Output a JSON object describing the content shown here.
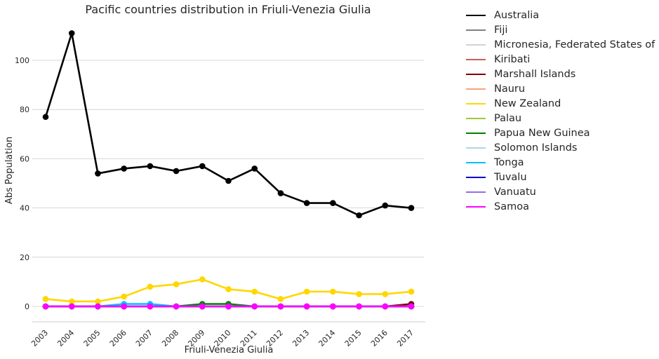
{
  "chart_data": {
    "type": "line",
    "title": "Pacific countries distribution in Friuli-Venezia Giulia",
    "xlabel": "Friuli-Venezia Giulia",
    "ylabel": "Abs Population",
    "categories": [
      "2003",
      "2004",
      "2005",
      "2006",
      "2007",
      "2008",
      "2009",
      "2010",
      "2011",
      "2012",
      "2013",
      "2014",
      "2015",
      "2016",
      "2017"
    ],
    "ylim": [
      -6.5,
      117
    ],
    "yticks": [
      "0",
      "20",
      "40",
      "60",
      "80",
      "100"
    ],
    "grid": "horizontal",
    "legend_position": "outside-right",
    "series": [
      {
        "name": "Australia",
        "color": "#000000",
        "marker": true,
        "values": [
          77,
          111,
          54,
          56,
          57,
          55,
          57,
          51,
          56,
          46,
          42,
          42,
          37,
          41,
          40
        ]
      },
      {
        "name": "Fiji",
        "color": "#808080",
        "marker": true,
        "values": [
          0,
          0,
          0,
          0,
          0,
          0,
          0,
          0,
          0,
          0,
          0,
          0,
          0,
          0,
          0
        ]
      },
      {
        "name": "Micronesia, Federated States of",
        "color": "#d3d3d3",
        "marker": true,
        "values": [
          0,
          0,
          0,
          0,
          0,
          0,
          0,
          0,
          0,
          0,
          0,
          0,
          0,
          0,
          0
        ]
      },
      {
        "name": "Kiribati",
        "color": "#cd5c5c",
        "marker": true,
        "values": [
          0,
          0,
          0,
          0,
          0,
          0,
          0,
          0,
          0,
          0,
          0,
          0,
          0,
          0,
          0
        ]
      },
      {
        "name": "Marshall Islands",
        "color": "#800000",
        "marker": true,
        "values": [
          0,
          0,
          0,
          0,
          0,
          0,
          0,
          0,
          0,
          0,
          0,
          0,
          0,
          0,
          1
        ]
      },
      {
        "name": "Nauru",
        "color": "#ffa07a",
        "marker": true,
        "values": [
          0,
          0,
          0,
          0,
          0,
          0,
          0,
          0,
          0,
          0,
          0,
          0,
          0,
          0,
          0
        ]
      },
      {
        "name": "New Zealand",
        "color": "#ffd700",
        "marker": true,
        "values": [
          3,
          2,
          2,
          4,
          8,
          9,
          11,
          7,
          6,
          3,
          6,
          6,
          5,
          5,
          6
        ]
      },
      {
        "name": "Palau",
        "color": "#9acd32",
        "marker": true,
        "values": [
          0,
          0,
          0,
          0,
          0,
          0,
          0,
          0,
          0,
          0,
          0,
          0,
          0,
          0,
          0
        ]
      },
      {
        "name": "Papua New Guinea",
        "color": "#008000",
        "marker": true,
        "values": [
          0,
          0,
          0,
          0,
          0,
          0,
          1,
          1,
          0,
          0,
          0,
          0,
          0,
          0,
          0
        ]
      },
      {
        "name": "Solomon Islands",
        "color": "#add8e6",
        "marker": true,
        "values": [
          0,
          0,
          0,
          0,
          0,
          0,
          0,
          0,
          0,
          0,
          0,
          0,
          0,
          0,
          0
        ]
      },
      {
        "name": "Tonga",
        "color": "#00bfff",
        "marker": true,
        "values": [
          0,
          0,
          0,
          1,
          1,
          0,
          0,
          0,
          0,
          0,
          0,
          0,
          0,
          0,
          0
        ]
      },
      {
        "name": "Tuvalu",
        "color": "#0000cd",
        "marker": true,
        "values": [
          0,
          0,
          0,
          0,
          0,
          0,
          0,
          0,
          0,
          0,
          0,
          0,
          0,
          0,
          0
        ]
      },
      {
        "name": "Vanuatu",
        "color": "#9370db",
        "marker": true,
        "values": [
          0,
          0,
          0,
          0,
          0,
          0,
          0,
          0,
          0,
          0,
          0,
          0,
          0,
          0,
          0
        ]
      },
      {
        "name": "Samoa",
        "color": "#ff00ff",
        "marker": true,
        "values": [
          0,
          0,
          0,
          0,
          0,
          0,
          0,
          0,
          0,
          0,
          0,
          0,
          0,
          0,
          0
        ]
      }
    ]
  }
}
